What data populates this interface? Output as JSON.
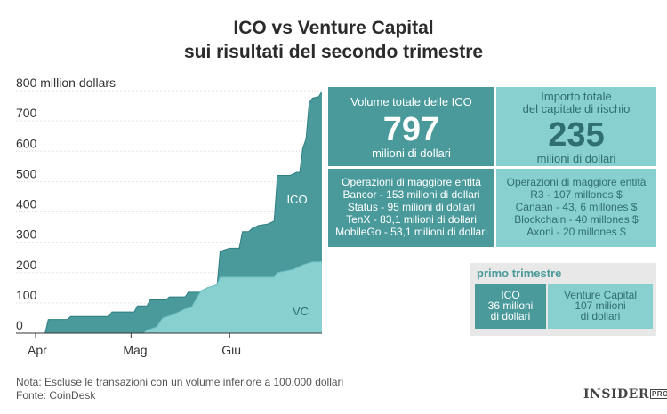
{
  "title_line1": "ICO vs Venture Capital",
  "title_line2": "sui risultati del secondo trimestre",
  "chart_data": {
    "type": "area",
    "title": "ICO vs Venture Capital sui risultati del secondo trimestre",
    "x_start": "2017-04-01",
    "x_end": "2017-06-30",
    "xticks": [
      {
        "label": "Apr",
        "date": "2017-04-01"
      },
      {
        "label": "Mag",
        "date": "2017-05-01"
      },
      {
        "label": "Giu",
        "date": "2017-06-01"
      }
    ],
    "ylim": [
      0,
      800
    ],
    "yticks": [
      0,
      100,
      200,
      300,
      400,
      500,
      600,
      700,
      800
    ],
    "ytick_labels": [
      "0",
      "100",
      "200",
      "300",
      "400",
      "500",
      "600",
      "700",
      "800 million dollars"
    ],
    "grid": true,
    "area_labels": {
      "ico": "ICO",
      "vc": "VC"
    },
    "series": [
      {
        "name": "ICO",
        "color": "#3d8f91",
        "points": [
          [
            "2017-04-04",
            0
          ],
          [
            "2017-04-05",
            45
          ],
          [
            "2017-04-11",
            45
          ],
          [
            "2017-04-12",
            55
          ],
          [
            "2017-04-24",
            55
          ],
          [
            "2017-04-25",
            70
          ],
          [
            "2017-05-02",
            70
          ],
          [
            "2017-05-03",
            90
          ],
          [
            "2017-05-06",
            90
          ],
          [
            "2017-05-07",
            110
          ],
          [
            "2017-05-12",
            110
          ],
          [
            "2017-05-13",
            120
          ],
          [
            "2017-05-18",
            120
          ],
          [
            "2017-05-19",
            135
          ],
          [
            "2017-05-24",
            135
          ],
          [
            "2017-05-25",
            150
          ],
          [
            "2017-05-28",
            150
          ],
          [
            "2017-05-29",
            270
          ],
          [
            "2017-06-01",
            280
          ],
          [
            "2017-06-04",
            280
          ],
          [
            "2017-06-05",
            335
          ],
          [
            "2017-06-07",
            335
          ],
          [
            "2017-06-08",
            345
          ],
          [
            "2017-06-10",
            355
          ],
          [
            "2017-06-13",
            360
          ],
          [
            "2017-06-14",
            365
          ],
          [
            "2017-06-15",
            370
          ],
          [
            "2017-06-16",
            520
          ],
          [
            "2017-06-20",
            520
          ],
          [
            "2017-06-21",
            525
          ],
          [
            "2017-06-22",
            530
          ],
          [
            "2017-06-23",
            530
          ],
          [
            "2017-06-24",
            610
          ],
          [
            "2017-06-25",
            640
          ],
          [
            "2017-06-26",
            760
          ],
          [
            "2017-06-27",
            775
          ],
          [
            "2017-06-29",
            780
          ],
          [
            "2017-06-30",
            797
          ]
        ]
      },
      {
        "name": "VC",
        "color": "#88cfd0",
        "points": [
          [
            "2017-05-05",
            0
          ],
          [
            "2017-05-06",
            10
          ],
          [
            "2017-05-09",
            20
          ],
          [
            "2017-05-11",
            50
          ],
          [
            "2017-05-14",
            60
          ],
          [
            "2017-05-18",
            80
          ],
          [
            "2017-05-20",
            85
          ],
          [
            "2017-05-23",
            140
          ],
          [
            "2017-05-25",
            150
          ],
          [
            "2017-05-28",
            160
          ],
          [
            "2017-05-29",
            185
          ],
          [
            "2017-06-15",
            185
          ],
          [
            "2017-06-16",
            200
          ],
          [
            "2017-06-21",
            210
          ],
          [
            "2017-06-24",
            225
          ],
          [
            "2017-06-27",
            235
          ],
          [
            "2017-06-30",
            235
          ]
        ]
      }
    ]
  },
  "ico_box": {
    "header": "Volume totale delle ICO",
    "value": "797",
    "unit": "milioni di dollari"
  },
  "vc_box": {
    "header1": "Importo totale",
    "header2": "del capitale di rischio",
    "value": "235",
    "unit": "milioni di dollari"
  },
  "ico_ops": {
    "title": "Operazioni di maggiore entità",
    "items": [
      "Bancor - 153 milioni di dollari",
      "Status - 95 milioni di dollari",
      "TenX - 83,1 milioni di dollari",
      "MobileGo - 53,1 milioni di dollari"
    ]
  },
  "vc_ops": {
    "title": "Operazioni di maggiore entità",
    "items": [
      "R3 - 107 millones $",
      "Canaan - 43, 6 millones $",
      "Blockchain - 40 millones $",
      "Axoni - 20 millones $"
    ]
  },
  "q1": {
    "label": "primo trimestre",
    "ico": [
      "ICO",
      "36 milioni",
      "di dollari"
    ],
    "vc": [
      "Venture Capital",
      "107 milioni",
      "di dollari"
    ]
  },
  "note": "Nota: Escluse le transazioni con un volume inferiore a 100.000 dollari",
  "source": "Fonte: CoinDesk",
  "brand": {
    "name": "INSIDER",
    "suffix": "PRO"
  },
  "colors": {
    "ico_dark": "#4a9a9c",
    "vc_light": "#88cfd0"
  }
}
